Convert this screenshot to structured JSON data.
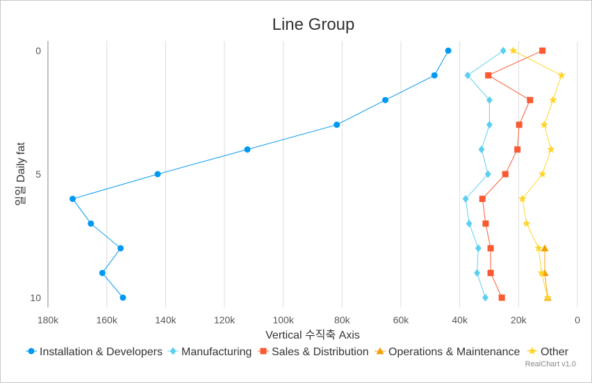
{
  "credit": "RealChart v1.0",
  "chart_data": {
    "type": "line",
    "title": "Line Group",
    "xlabel": "Vertical 수직축 Axis",
    "ylabel": "일일 Daily fat",
    "orientation": "inverted",
    "xlim": [
      180000,
      0
    ],
    "xreversed": true,
    "ylim": [
      0,
      10
    ],
    "x_ticks": [
      "180k",
      "160k",
      "140k",
      "120k",
      "100k",
      "80k",
      "60k",
      "40k",
      "20k",
      "0"
    ],
    "y_ticks": [
      "0",
      "5",
      "10"
    ],
    "grid": true,
    "legend": "bottom",
    "series": [
      {
        "name": "Installation & Developers",
        "color": "#0098f0",
        "marker": "circle",
        "values": [
          {
            "y": 0,
            "x": 43900
          },
          {
            "y": 1,
            "x": 48600
          },
          {
            "y": 2,
            "x": 65300
          },
          {
            "y": 3,
            "x": 81800
          },
          {
            "y": 4,
            "x": 112200
          },
          {
            "y": 5,
            "x": 142700
          },
          {
            "y": 6,
            "x": 171600
          },
          {
            "y": 7,
            "x": 165400
          },
          {
            "y": 8,
            "x": 155300
          },
          {
            "y": 9,
            "x": 161500
          },
          {
            "y": 10,
            "x": 154500
          }
        ]
      },
      {
        "name": "Manufacturing",
        "color": "#5bcff2",
        "marker": "diamond",
        "values": [
          {
            "y": 0,
            "x": 25200
          },
          {
            "y": 1,
            "x": 37300
          },
          {
            "y": 2,
            "x": 29900
          },
          {
            "y": 3,
            "x": 29900
          },
          {
            "y": 4,
            "x": 32600
          },
          {
            "y": 5,
            "x": 30400
          },
          {
            "y": 6,
            "x": 38000
          },
          {
            "y": 7,
            "x": 36800
          },
          {
            "y": 8,
            "x": 33700
          },
          {
            "y": 9,
            "x": 34100
          },
          {
            "y": 10,
            "x": 31300
          }
        ]
      },
      {
        "name": "Sales & Distribution",
        "color": "#fa5a32",
        "marker": "square",
        "values": [
          {
            "y": 0,
            "x": 11900
          },
          {
            "y": 1,
            "x": 30300
          },
          {
            "y": 2,
            "x": 16100
          },
          {
            "y": 3,
            "x": 19800
          },
          {
            "y": 4,
            "x": 20400
          },
          {
            "y": 5,
            "x": 24500
          },
          {
            "y": 6,
            "x": 32300
          },
          {
            "y": 7,
            "x": 31200
          },
          {
            "y": 8,
            "x": 29500
          },
          {
            "y": 9,
            "x": 29500
          },
          {
            "y": 10,
            "x": 25700
          }
        ]
      },
      {
        "name": "Operations & Maintenance",
        "color": "#f5a000",
        "marker": "triangle",
        "values": [
          {
            "y": 8,
            "x": 11100
          },
          {
            "y": 9,
            "x": 11100
          },
          {
            "y": 10,
            "x": 10100
          }
        ]
      },
      {
        "name": "Other",
        "color": "#ffd42a",
        "marker": "star",
        "values": [
          {
            "y": 0,
            "x": 21800
          },
          {
            "y": 1,
            "x": 5400
          },
          {
            "y": 2,
            "x": 8300
          },
          {
            "y": 3,
            "x": 11300
          },
          {
            "y": 4,
            "x": 9000
          },
          {
            "y": 5,
            "x": 11900
          },
          {
            "y": 6,
            "x": 18700
          },
          {
            "y": 7,
            "x": 17300
          },
          {
            "y": 8,
            "x": 13200
          },
          {
            "y": 9,
            "x": 12200
          },
          {
            "y": 10,
            "x": 10100
          }
        ]
      }
    ]
  }
}
